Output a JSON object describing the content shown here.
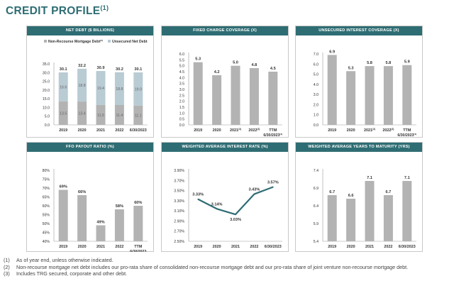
{
  "title": {
    "text": "CREDIT PROFILE",
    "superscript": "(1)"
  },
  "colors": {
    "accent": "#2e6d73",
    "bar": "#b3b3b3",
    "bar_light": "#b9cbd3",
    "line": "#2e6d73"
  },
  "chart_data": [
    {
      "id": "net-debt",
      "type": "bar",
      "stacked": true,
      "title": "NET DEBT ($ BILLIONS)",
      "legend": [
        {
          "label": "Non-Recourse Mortgage Debt",
          "superscript": "(2)"
        },
        {
          "label": "Unsecured Net Debt",
          "superscript": ""
        }
      ],
      "categories": [
        "2019",
        "2020",
        "2021",
        "2022",
        "6/30/2023"
      ],
      "series": [
        {
          "name": "Non-Recourse Mortgage Debt",
          "values": [
            13.5,
            13.4,
            11.5,
            11.4,
            11.1
          ]
        },
        {
          "name": "Unsecured Net Debt",
          "values": [
            16.6,
            18.8,
            19.4,
            18.8,
            19.0
          ]
        }
      ],
      "totals": [
        "30.1",
        "32.2",
        "30.9",
        "30.2",
        "30.1"
      ],
      "bottom_labels": [
        "13.5",
        "13.4",
        "11.5",
        "11.4",
        "11.1"
      ],
      "top_labels": [
        "16.6",
        "18.8",
        "19.4",
        "18.8",
        "19.0"
      ],
      "ylim": [
        0,
        35
      ],
      "yticks": [
        "0.0",
        "5.0",
        "10.0",
        "15.0",
        "20.0",
        "25.0",
        "30.0",
        "35.0"
      ]
    },
    {
      "id": "fixed-charge",
      "type": "bar",
      "title": "FIXED CHARGE COVERAGE (X)",
      "categories": [
        "2019",
        "2020",
        "2021",
        "2022",
        "TTM"
      ],
      "category_sups": [
        "",
        "",
        "(3)",
        "(3)",
        ""
      ],
      "category_sublines": [
        "",
        "",
        "",
        "",
        "6/30/2023"
      ],
      "category_subline_sups": [
        "",
        "",
        "",
        "",
        "(3)"
      ],
      "values": [
        5.3,
        4.2,
        5.0,
        4.8,
        4.5
      ],
      "labels": [
        "5.3",
        "4.2",
        "5.0",
        "4.8",
        "4.5"
      ],
      "ylim": [
        0,
        6
      ],
      "yticks": [
        "0.0",
        "0.5",
        "1.0",
        "1.5",
        "2.0",
        "2.5",
        "3.0",
        "3.5",
        "4.0",
        "4.5",
        "5.0",
        "5.5",
        "6.0"
      ]
    },
    {
      "id": "unsecured-interest",
      "type": "bar",
      "title": "UNSECURED INTEREST COVERAGE (X)",
      "categories": [
        "2019",
        "2020",
        "2021",
        "2022",
        "TTM"
      ],
      "category_sups": [
        "",
        "",
        "(3)",
        "(3)",
        ""
      ],
      "category_sublines": [
        "",
        "",
        "",
        "",
        "6/30/2023"
      ],
      "category_subline_sups": [
        "",
        "",
        "",
        "",
        "(3)"
      ],
      "values": [
        6.9,
        5.3,
        5.8,
        5.8,
        5.9
      ],
      "labels": [
        "6.9",
        "5.3",
        "5.8",
        "5.8",
        "5.9"
      ],
      "ylim": [
        0,
        7
      ],
      "yticks": [
        "0.0",
        "1.0",
        "2.0",
        "3.0",
        "4.0",
        "5.0",
        "6.0",
        "7.0"
      ]
    },
    {
      "id": "ffo-payout",
      "type": "bar",
      "title": "FFO PAYOUT RATIO (%)",
      "categories": [
        "2019",
        "2020",
        "2021",
        "2022",
        "TTM"
      ],
      "category_sups": [
        "",
        "",
        "",
        "",
        ""
      ],
      "category_sublines": [
        "",
        "",
        "",
        "",
        "6/30/2023"
      ],
      "category_subline_sups": [
        "",
        "",
        "",
        "",
        ""
      ],
      "values": [
        69,
        66,
        49,
        58,
        60
      ],
      "labels": [
        "69%",
        "66%",
        "49%",
        "58%",
        "60%"
      ],
      "ylim": [
        40,
        80
      ],
      "yticks": [
        "40%",
        "45%",
        "50%",
        "55%",
        "60%",
        "65%",
        "70%",
        "75%",
        "80%"
      ]
    },
    {
      "id": "weighted-rate",
      "type": "line",
      "title": "WEIGHTED AVERAGE INTEREST RATE (%)",
      "categories": [
        "2019",
        "2020",
        "2021",
        "2022",
        "6/30/2023"
      ],
      "values": [
        3.33,
        3.14,
        3.03,
        3.43,
        3.57
      ],
      "labels": [
        "3.33%",
        "3.14%",
        "3.03%",
        "3.43%",
        "3.57%"
      ],
      "ylim": [
        2.5,
        3.9
      ],
      "yticks": [
        "2.50%",
        "2.70%",
        "2.90%",
        "3.10%",
        "3.30%",
        "3.50%",
        "3.70%",
        "3.90%"
      ]
    },
    {
      "id": "years-maturity",
      "type": "bar",
      "title": "WEIGHTED AVERAGE YEARS TO MATURITY (YRS)",
      "categories": [
        "2019",
        "2020",
        "2021",
        "2022",
        "6/30/2023"
      ],
      "category_sups": [
        "",
        "",
        "",
        "",
        ""
      ],
      "category_sublines": [
        "",
        "",
        "",
        "",
        ""
      ],
      "category_subline_sups": [
        "",
        "",
        "",
        "",
        ""
      ],
      "values": [
        6.7,
        6.6,
        7.1,
        6.7,
        7.1
      ],
      "labels": [
        "6.7",
        "6.6",
        "7.1",
        "6.7",
        "7.1"
      ],
      "ylim": [
        5.4,
        7.4
      ],
      "yticks": [
        "5.4",
        "5.9",
        "6.4",
        "6.9",
        "7.4"
      ]
    }
  ],
  "footnotes": [
    {
      "num": "(1)",
      "text": "As of year end, unless otherwise indicated."
    },
    {
      "num": "(2)",
      "text": "Non-recourse mortgage net debt includes our pro-rata share of consolidated non-recourse mortgage debt and our pro-rata share of joint venture non-recourse mortgage debt."
    },
    {
      "num": "(3)",
      "text": "Includes TRG secured, corporate and other debt."
    }
  ]
}
